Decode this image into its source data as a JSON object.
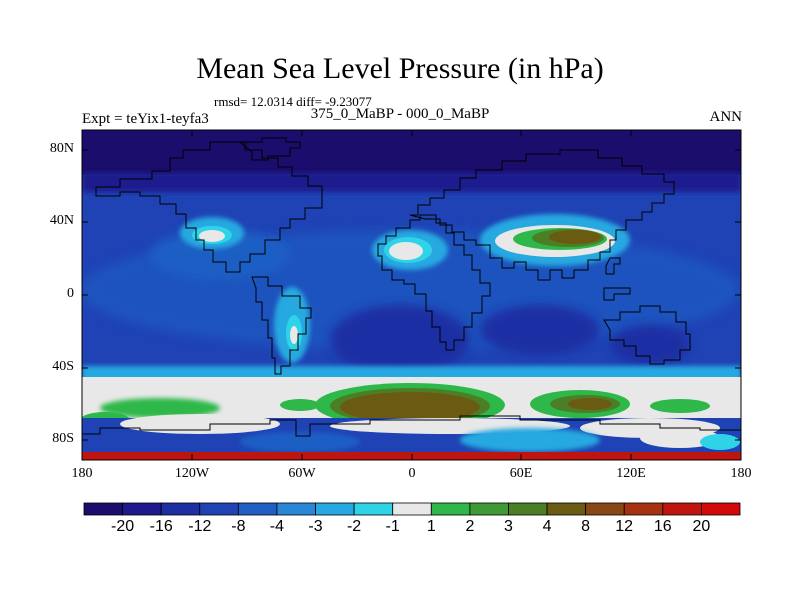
{
  "title": "Mean Sea Level Pressure (in hPa)",
  "stats_line": "rmsd= 12.0314 diff= -9.23077",
  "subtitle": "375_0_MaBP - 000_0_MaBP",
  "left_label": "Expt = teYix1-teyfa3",
  "right_label": "ANN",
  "lat_ticks": [
    "80N",
    "40N",
    "0",
    "40S",
    "80S"
  ],
  "lon_ticks": [
    "180",
    "120W",
    "60W",
    "0",
    "60E",
    "120E",
    "180"
  ],
  "colorbar": {
    "labels": [
      "-20",
      "-16",
      "-12",
      "-8",
      "-4",
      "-3",
      "-2",
      "-1",
      "1",
      "2",
      "3",
      "4",
      "8",
      "12",
      "16",
      "20"
    ],
    "colors": [
      "#1a0d6b",
      "#1e1a8e",
      "#1e2ea3",
      "#1f43b5",
      "#1f5fc4",
      "#2a86d6",
      "#27a8e0",
      "#2ed3e8",
      "#e8e8e8",
      "#2fb84a",
      "#3f9a36",
      "#4c7f25",
      "#6a5a12",
      "#8a4716",
      "#a63212",
      "#c0150f",
      "#d40a0a"
    ]
  },
  "colors": {
    "deep_neg": "#1a0d6b",
    "neg": "#1f43b5",
    "mid_neg": "#1f5fc4",
    "zero": "#e8e8e8",
    "pos": "#2fb84a",
    "high_pos": "#6a5a12"
  }
}
